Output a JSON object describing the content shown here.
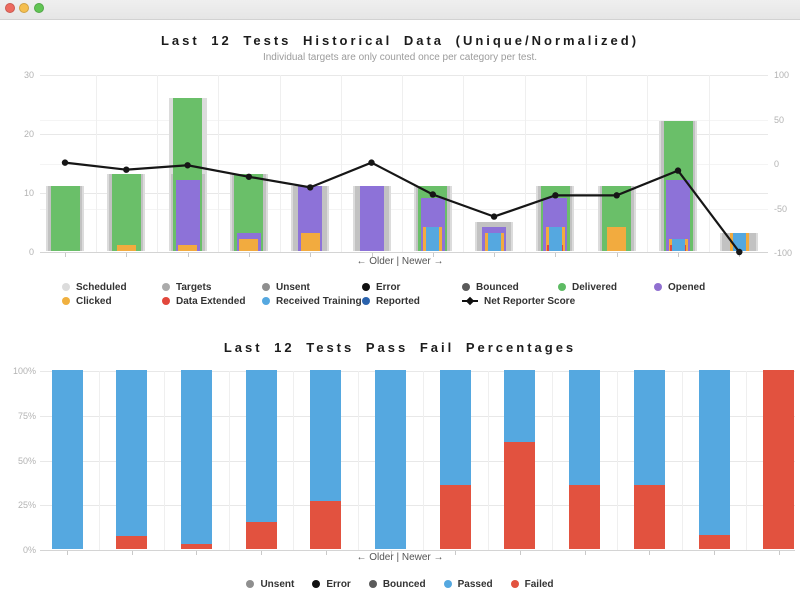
{
  "window": {
    "buttons": [
      {
        "name": "close",
        "color": "#ed6a5f"
      },
      {
        "name": "minimize",
        "color": "#f5bf4f"
      },
      {
        "name": "zoom",
        "color": "#61c554"
      }
    ]
  },
  "top_chart": {
    "title": "Last 12 Tests Historical Data (Unique/Normalized)",
    "subtitle": "Individual targets are only counted once per category per test.",
    "x_axis_label": "← Older | Newer →",
    "left_axis_ticks": [
      "30",
      "20",
      "10",
      "0"
    ],
    "right_axis_ticks": [
      "100",
      "50",
      "0",
      "-50",
      "-100"
    ],
    "legend_rows": [
      [
        {
          "label": "Scheduled",
          "color": "#dcdcdc",
          "marker": "dot"
        },
        {
          "label": "Targets",
          "color": "#ababab",
          "marker": "dot"
        },
        {
          "label": "Unsent",
          "color": "#8f8f8f",
          "marker": "dot"
        },
        {
          "label": "Error",
          "color": "#111111",
          "marker": "dot"
        },
        {
          "label": "Bounced",
          "color": "#5a5a5a",
          "marker": "dot"
        },
        {
          "label": "Delivered",
          "color": "#5dbb63",
          "marker": "dot"
        },
        {
          "label": "Opened",
          "color": "#9070d0",
          "marker": "dot"
        }
      ],
      [
        {
          "label": "Clicked",
          "color": "#f0b03f",
          "marker": "dot"
        },
        {
          "label": "Data Extended",
          "color": "#e2473c",
          "marker": "dot"
        },
        {
          "label": "Received Training",
          "color": "#55a8e0",
          "marker": "dot"
        },
        {
          "label": "Reported",
          "color": "#2a62ac",
          "marker": "dot"
        },
        {
          "label": "Net Reporter Score",
          "color": "#111111",
          "marker": "line-diamond"
        }
      ]
    ]
  },
  "bottom_chart": {
    "title": "Last 12 Tests Pass Fail Percentages",
    "x_axis_label": "← Older | Newer →",
    "y_axis_ticks": [
      "100%",
      "75%",
      "50%",
      "25%",
      "0%"
    ],
    "legend": [
      {
        "label": "Unsent",
        "color": "#8f8f8f",
        "marker": "dot"
      },
      {
        "label": "Error",
        "color": "#111111",
        "marker": "dot"
      },
      {
        "label": "Bounced",
        "color": "#5a5a5a",
        "marker": "dot"
      },
      {
        "label": "Passed",
        "color": "#55a8e0",
        "marker": "dot"
      },
      {
        "label": "Failed",
        "color": "#e2523f",
        "marker": "dot"
      }
    ]
  },
  "chart_data": [
    {
      "type": "bar",
      "subtype": "overlapping-bars-with-line",
      "title": "Last 12 Tests Historical Data (Unique/Normalized)",
      "subtitle": "Individual targets are only counted once per category per test.",
      "categories": [
        1,
        2,
        3,
        4,
        5,
        6,
        7,
        8,
        9,
        10,
        11,
        12
      ],
      "x_order_note": "older on left, newer on right; x tick marks unlabeled",
      "left_axis": {
        "label": "",
        "range": [
          0,
          30
        ],
        "ticks": [
          0,
          10,
          20,
          30
        ]
      },
      "right_axis": {
        "label": "",
        "range": [
          -100,
          100
        ],
        "ticks": [
          -100,
          -50,
          0,
          50,
          100
        ]
      },
      "grid": true,
      "series": [
        {
          "name": "Scheduled",
          "color": "#dcdcdc",
          "values": [
            11,
            13,
            26,
            13,
            11,
            11,
            11,
            5,
            11,
            11,
            22,
            3
          ]
        },
        {
          "name": "Targets",
          "color": "#c2c2c2",
          "values": [
            11,
            13,
            13,
            13,
            11,
            11,
            11,
            5,
            11,
            11,
            22,
            3
          ]
        },
        {
          "name": "Unsent",
          "color": "#8f8f8f",
          "values": [
            0,
            0,
            0,
            0,
            0,
            0,
            0,
            0,
            0,
            0,
            0,
            0
          ]
        },
        {
          "name": "Error",
          "color": "#111111",
          "values": [
            0,
            0,
            0,
            0,
            0,
            0,
            0,
            0,
            0,
            0,
            0,
            0
          ]
        },
        {
          "name": "Bounced",
          "color": "#5a5a5a",
          "values": [
            0,
            0,
            0,
            0,
            0,
            0,
            0,
            0,
            0,
            0,
            0,
            0
          ]
        },
        {
          "name": "Delivered",
          "color": "#6abf69",
          "values": [
            11,
            13,
            26,
            13,
            0,
            0,
            11,
            0,
            11,
            11,
            22,
            0
          ]
        },
        {
          "name": "Opened",
          "color": "#8d72d8",
          "values": [
            0,
            0,
            12,
            3,
            11,
            11,
            9,
            4,
            9,
            0,
            12,
            0
          ]
        },
        {
          "name": "Clicked",
          "color": "#f2ab3f",
          "values": [
            0,
            1,
            1,
            2,
            3,
            0,
            4,
            3,
            4,
            4,
            2,
            3
          ]
        },
        {
          "name": "Data Extended",
          "color": "#e2473c",
          "values": [
            0,
            0,
            0,
            0,
            0,
            0,
            0,
            0,
            1,
            0,
            1,
            0
          ]
        },
        {
          "name": "Received Training",
          "color": "#55a8e0",
          "values": [
            0,
            0,
            0,
            0,
            0,
            0,
            4,
            3,
            4,
            0,
            2,
            3
          ]
        },
        {
          "name": "Reported",
          "color": "#2a62ac",
          "values": [
            0,
            0,
            0,
            0,
            0,
            0,
            0,
            0,
            0,
            0,
            0,
            0
          ]
        }
      ],
      "line_series": {
        "name": "Net Reporter Score",
        "color": "#161616",
        "axis": "right",
        "values": [
          1,
          -7,
          -2,
          -15,
          -27,
          1,
          -35,
          -60,
          -36,
          -36,
          -8,
          -100
        ]
      }
    },
    {
      "type": "bar",
      "subtype": "stacked-percentage",
      "title": "Last 12 Tests Pass Fail Percentages",
      "categories": [
        1,
        2,
        3,
        4,
        5,
        6,
        7,
        8,
        9,
        10,
        11,
        12
      ],
      "x_order_note": "older on left, newer on right; x tick marks unlabeled",
      "ylabel": "",
      "ylim": [
        0,
        100
      ],
      "y_ticks_percent": [
        0,
        25,
        50,
        75,
        100
      ],
      "grid": true,
      "series": [
        {
          "name": "Passed",
          "color": "#55a8e0",
          "values": [
            100,
            93,
            97,
            85,
            73,
            100,
            64,
            40,
            64,
            64,
            92,
            0
          ]
        },
        {
          "name": "Failed",
          "color": "#e2523f",
          "values": [
            0,
            7,
            3,
            15,
            27,
            0,
            36,
            60,
            36,
            36,
            8,
            100
          ]
        }
      ]
    }
  ]
}
